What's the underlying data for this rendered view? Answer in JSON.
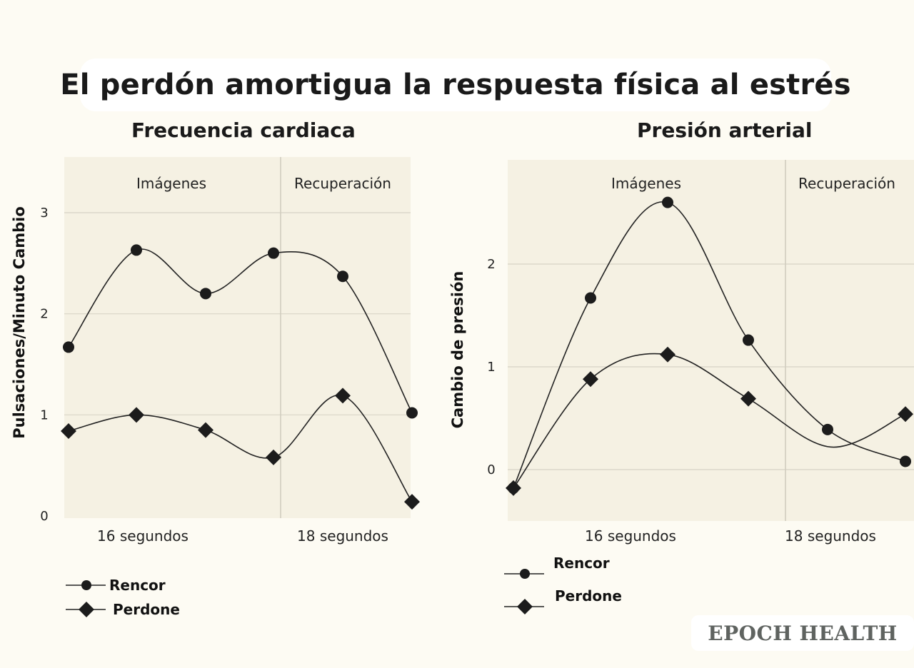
{
  "title": "El perdón amortigua la respuesta física al estrés",
  "brand": "EPOCH HEALTH",
  "chart_data": [
    {
      "type": "line",
      "title": "Frecuencia cardiaca",
      "ylabel": "Pulsaciones/Minuto Cambio",
      "ylim": [
        0,
        3.5
      ],
      "yticks": [
        0,
        1,
        2,
        3
      ],
      "phases": [
        "Imágenes",
        "Recuperación"
      ],
      "xticks": [
        "16 segundos",
        "18 segundos"
      ],
      "x": [
        1,
        2,
        3,
        4,
        5,
        6
      ],
      "series": [
        {
          "name": "Rencor",
          "marker": "circle",
          "values": [
            1.67,
            2.63,
            2.2,
            2.6,
            2.37,
            1.02
          ]
        },
        {
          "name": "Perdone",
          "marker": "diamond",
          "values": [
            0.84,
            1.0,
            0.85,
            0.58,
            1.19,
            0.14
          ]
        }
      ],
      "legend": "bottom-left",
      "grid": true
    },
    {
      "type": "line",
      "title": "Presión arterial",
      "ylabel": "Cambio de presión",
      "ylim": [
        -0.5,
        3.0
      ],
      "yticks": [
        0,
        1,
        2
      ],
      "phases": [
        "Imágenes",
        "Recuperación"
      ],
      "xticks": [
        "16 segundos",
        "18 segundos"
      ],
      "x": [
        1,
        2,
        3,
        4,
        5,
        6
      ],
      "series": [
        {
          "name": "Rencor",
          "marker": "circle",
          "values": [
            -0.18,
            1.67,
            2.6,
            1.26,
            0.39,
            0.08
          ]
        },
        {
          "name": "Perdone",
          "marker": "diamond",
          "values": [
            -0.18,
            0.88,
            1.12,
            0.69,
            null,
            0.54
          ]
        }
      ],
      "legend": "bottom-left",
      "grid": true
    }
  ]
}
